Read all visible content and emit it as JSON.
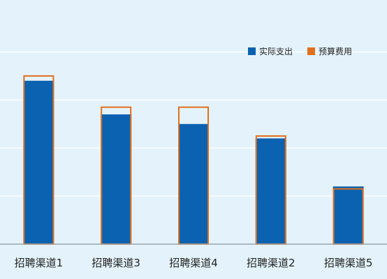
{
  "colors": {
    "background": "#e4f3fb",
    "gridline": "#ffffff",
    "axis": "#9aa6ad",
    "actual": "#0a62b0",
    "budget": "#e0701e",
    "text": "#222222"
  },
  "chart_data": {
    "type": "bar",
    "title": "",
    "xlabel": "",
    "ylabel": "",
    "ylim": [
      0,
      4.5
    ],
    "grid": true,
    "legend_position": "top-right",
    "categories": [
      "招聘渠道1",
      "招聘渠道3",
      "招聘渠道4",
      "招聘渠道2",
      "招聘渠道5"
    ],
    "series": [
      {
        "name": "实际支出",
        "values": [
          3.4,
          2.7,
          2.5,
          2.2,
          1.2
        ]
      },
      {
        "name": "预算费用",
        "values": [
          3.5,
          2.85,
          2.85,
          2.25,
          1.15
        ]
      }
    ]
  }
}
